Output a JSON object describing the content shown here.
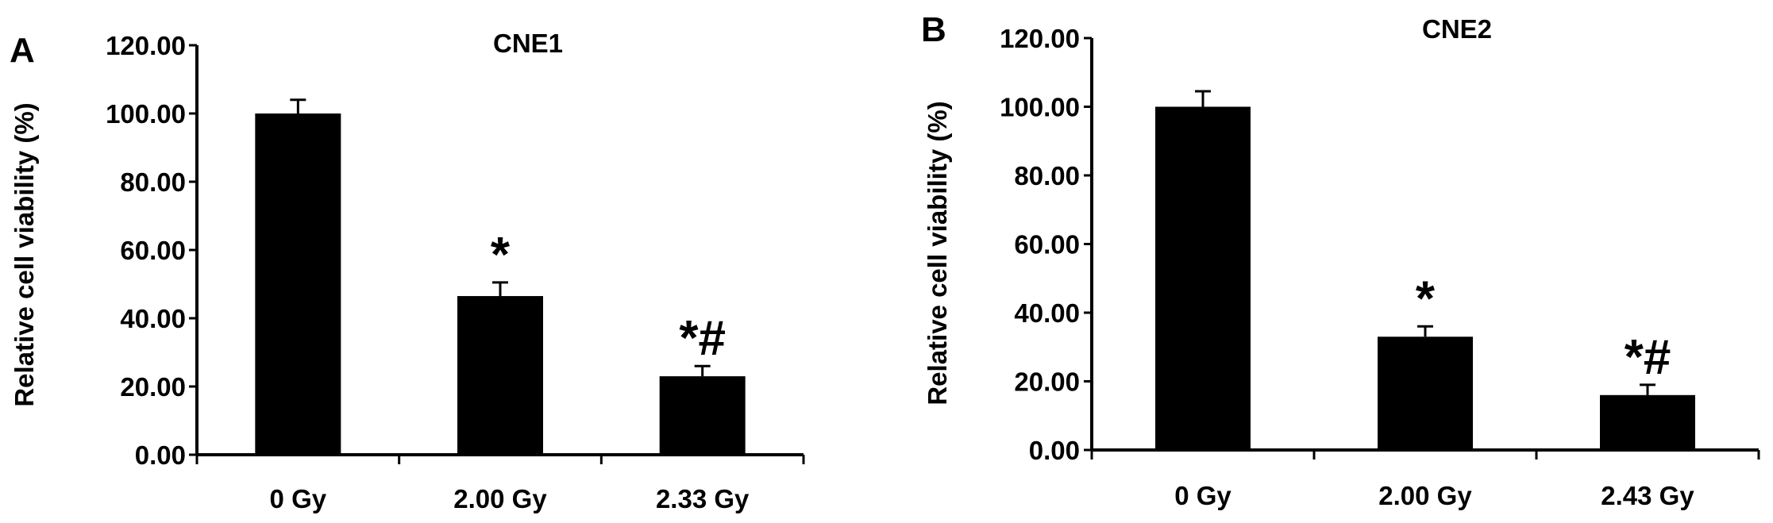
{
  "colors": {
    "bar": "#000000",
    "axis": "#000000",
    "background": "#ffffff"
  },
  "chart_data": [
    {
      "panel": "A",
      "type": "bar",
      "title": "CNE1",
      "xlabel": "",
      "ylabel": "Relative cell viability (%)",
      "ylim": [
        0,
        120
      ],
      "yticks": [
        "0.00",
        "20.00",
        "40.00",
        "60.00",
        "80.00",
        "100.00",
        "120.00"
      ],
      "categories": [
        "0 Gy",
        "2.00 Gy",
        "2.33 Gy"
      ],
      "values": [
        100,
        46.5,
        23
      ],
      "errors": [
        4,
        4,
        3
      ],
      "annotations": [
        "",
        "*",
        "*#"
      ],
      "grid": false,
      "legend": "none"
    },
    {
      "panel": "B",
      "type": "bar",
      "title": "CNE2",
      "xlabel": "",
      "ylabel": "Relative cell viability (%)",
      "ylim": [
        0,
        120
      ],
      "yticks": [
        "0.00",
        "20.00",
        "40.00",
        "60.00",
        "80.00",
        "100.00",
        "120.00"
      ],
      "categories": [
        "0 Gy",
        "2.00 Gy",
        "2.43 Gy"
      ],
      "values": [
        100,
        33,
        16
      ],
      "errors": [
        4.5,
        3,
        3
      ],
      "annotations": [
        "",
        "*",
        "*#"
      ],
      "grid": false,
      "legend": "none"
    }
  ]
}
